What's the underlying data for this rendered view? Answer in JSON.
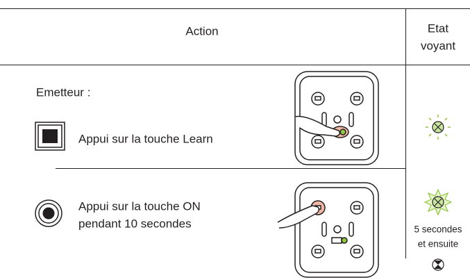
{
  "header": {
    "action": "Action",
    "status": [
      "Etat",
      "voyant"
    ]
  },
  "rows": [
    {
      "section": "Emetteur :",
      "instruction": [
        "Appui sur la touche Learn"
      ]
    },
    {
      "instruction": [
        "Appui sur la touche ON",
        "pendant 10 secondes"
      ],
      "status": [
        "5 secondes",
        "et ensuite"
      ]
    }
  ]
}
